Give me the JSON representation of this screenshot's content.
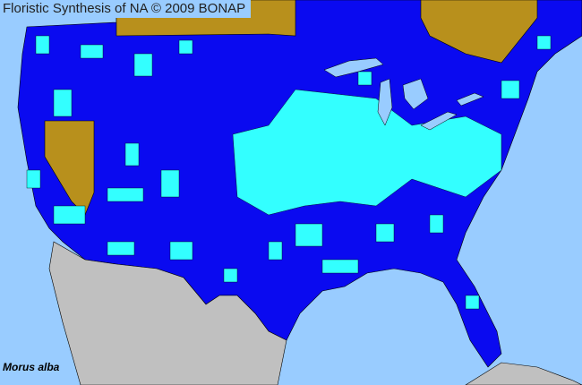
{
  "title": "Floristic Synthesis of NA © 2009 BONAP",
  "species": "Morus alba",
  "colors": {
    "ocean": "#99ccff",
    "present_state": "#0000ff",
    "present_county": "#00ffff",
    "not_present_region": "#b8901c",
    "outside_range": "#c0c0c0"
  }
}
